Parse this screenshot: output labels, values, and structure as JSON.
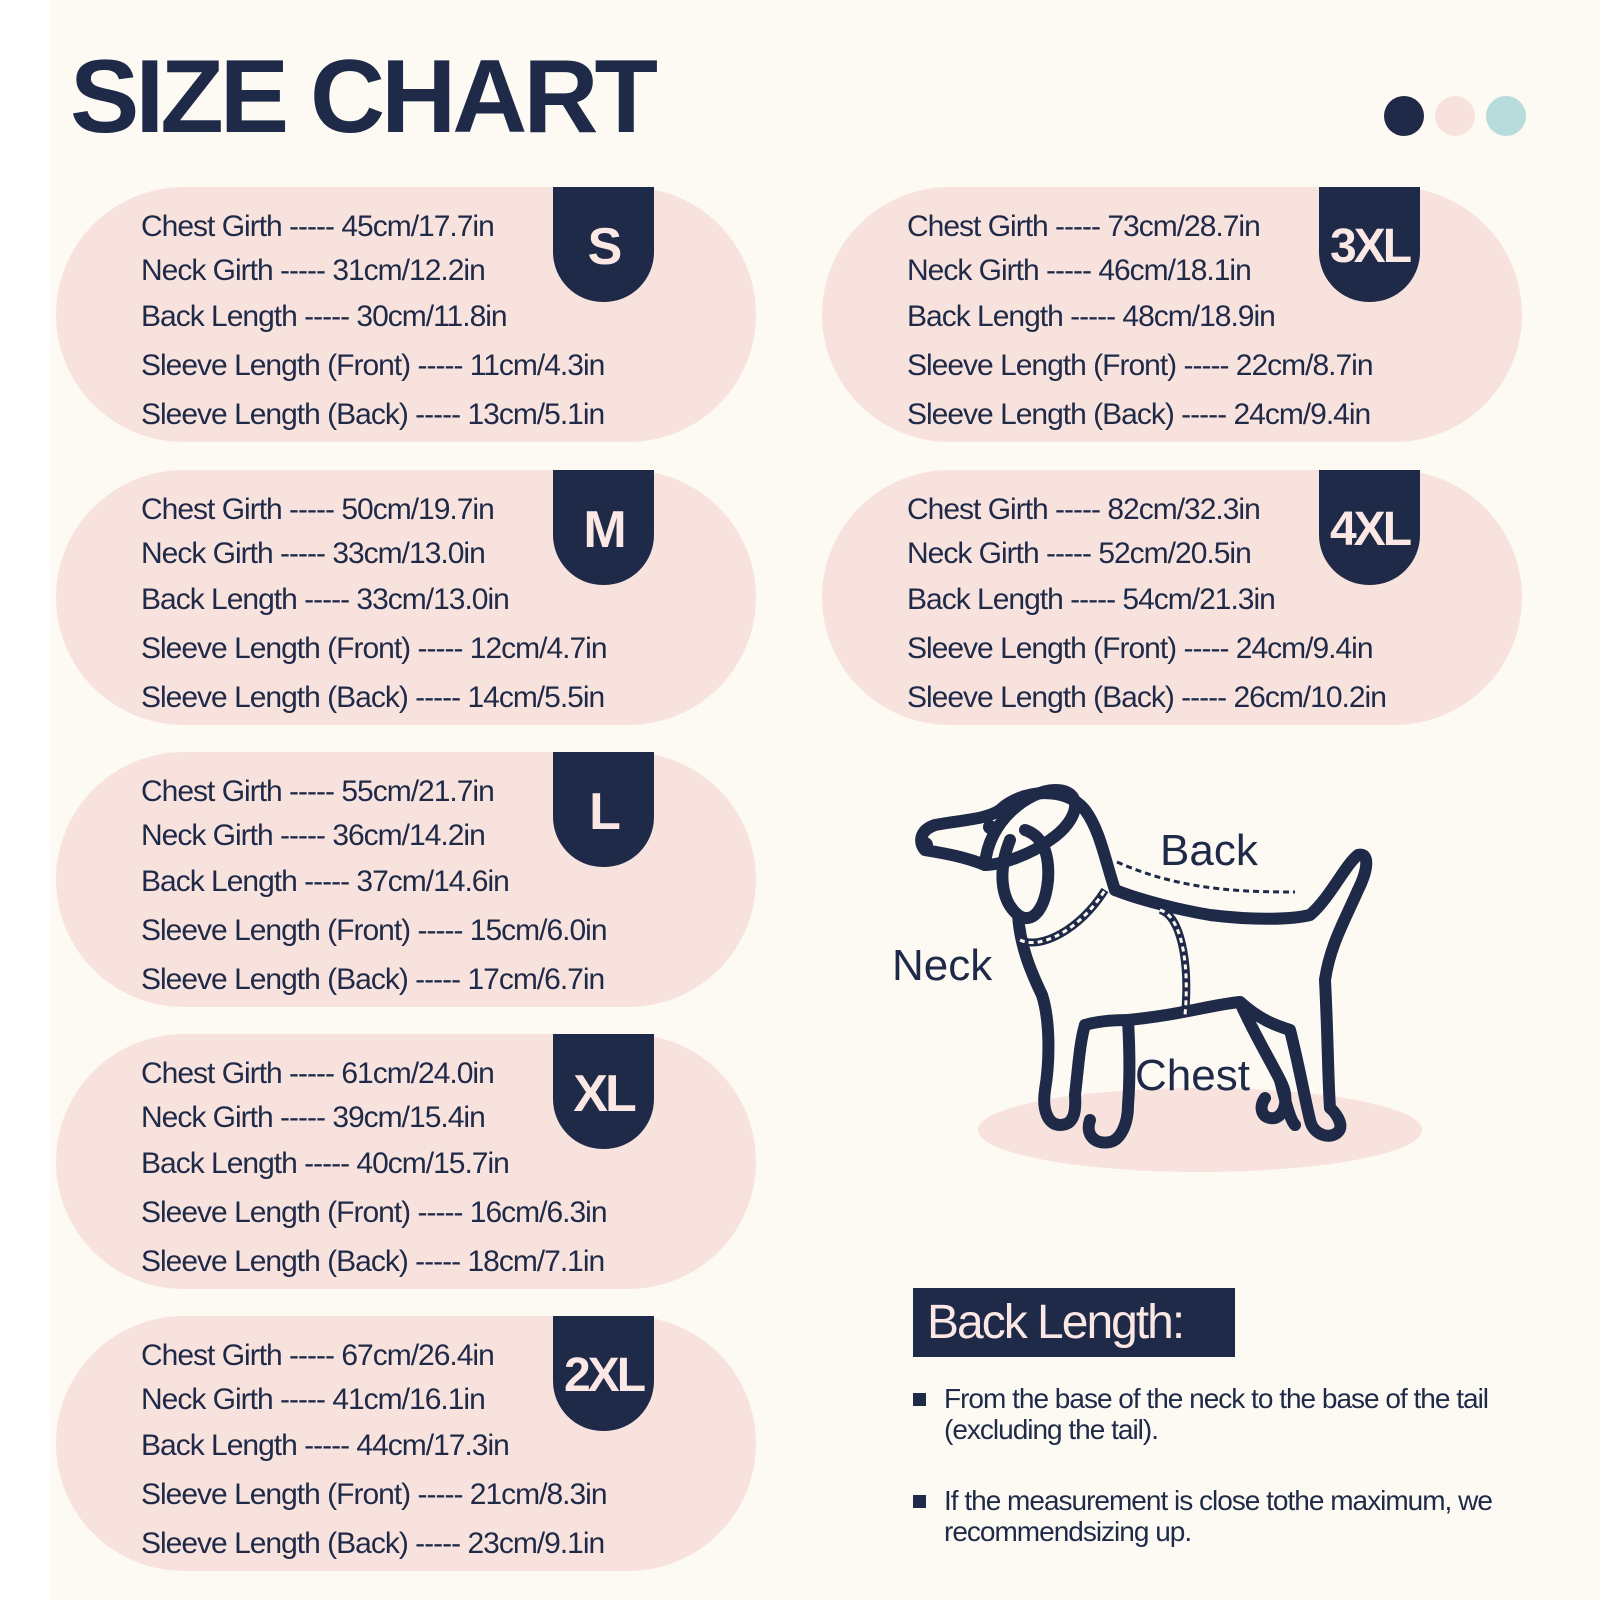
{
  "title": "SIZE CHART",
  "colors": {
    "navy": "#1f2a48",
    "pink": "#f8e2dd",
    "teal": "#b8dbdb",
    "cream": "#fdfaf4"
  },
  "swatches": [
    {
      "color": "#1f2a48"
    },
    {
      "color": "#f8e2dd"
    },
    {
      "color": "#b8dbdb"
    }
  ],
  "sizes": [
    {
      "size": "S",
      "rows": [
        "Chest Girth ----- 45cm/17.7in",
        "Neck Girth ----- 31cm/12.2in",
        "Back Length ----- 30cm/11.8in",
        "Sleeve Length (Front) ----- 11cm/4.3in",
        "Sleeve Length (Back) ----- 13cm/5.1in"
      ]
    },
    {
      "size": "M",
      "rows": [
        "Chest Girth ----- 50cm/19.7in",
        "Neck Girth ----- 33cm/13.0in",
        "Back Length ----- 33cm/13.0in",
        "Sleeve Length (Front) ----- 12cm/4.7in",
        "Sleeve Length (Back) ----- 14cm/5.5in"
      ]
    },
    {
      "size": "L",
      "rows": [
        "Chest Girth ----- 55cm/21.7in",
        "Neck Girth ----- 36cm/14.2in",
        "Back Length ----- 37cm/14.6in",
        "Sleeve Length (Front) ----- 15cm/6.0in",
        "Sleeve Length (Back) ----- 17cm/6.7in"
      ]
    },
    {
      "size": "XL",
      "rows": [
        "Chest Girth ----- 61cm/24.0in",
        "Neck Girth ----- 39cm/15.4in",
        "Back Length ----- 40cm/15.7in",
        "Sleeve Length (Front) ----- 16cm/6.3in",
        "Sleeve Length (Back) ----- 18cm/7.1in"
      ]
    },
    {
      "size": "2XL",
      "rows": [
        "Chest Girth ----- 67cm/26.4in",
        "Neck Girth ----- 41cm/16.1in",
        "Back Length ----- 44cm/17.3in",
        "Sleeve Length (Front) ----- 21cm/8.3in",
        "Sleeve Length (Back) ----- 23cm/9.1in"
      ]
    },
    {
      "size": "3XL",
      "rows": [
        "Chest Girth ----- 73cm/28.7in",
        "Neck Girth ----- 46cm/18.1in",
        "Back Length ----- 48cm/18.9in",
        "Sleeve Length (Front) ----- 22cm/8.7in",
        "Sleeve Length (Back) ----- 24cm/9.4in"
      ]
    },
    {
      "size": "4XL",
      "rows": [
        "Chest Girth ----- 82cm/32.3in",
        "Neck Girth ----- 52cm/20.5in",
        "Back Length ----- 54cm/21.3in",
        "Sleeve Length (Front) ----- 24cm/9.4in",
        "Sleeve Length (Back) ----- 26cm/10.2in"
      ]
    }
  ],
  "diagram": {
    "icon": "dog-measurement-icon",
    "labels": {
      "back": "Back",
      "neck": "Neck",
      "chest": "Chest"
    }
  },
  "back_length": {
    "heading": "Back Length:",
    "notes": [
      "From the base of the neck to the base of the tail (excluding the tail).",
      "If the measurement is close tothe maximum, we recommendsizing up."
    ]
  }
}
